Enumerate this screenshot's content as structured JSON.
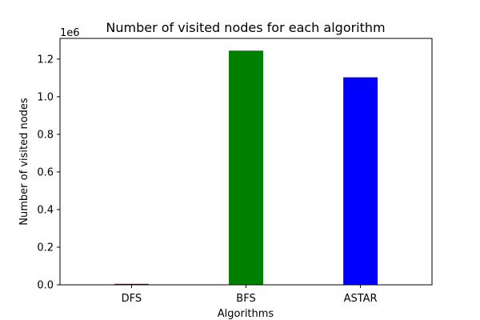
{
  "chart_data": {
    "type": "bar",
    "title": "Number of visited nodes for each algorithm",
    "xlabel": "Algorithms",
    "ylabel": "Number of visited nodes",
    "y_offset_label": "1e6",
    "y_scale": 1000000,
    "categories": [
      "DFS",
      "BFS",
      "ASTAR"
    ],
    "values": [
      5000,
      1245000,
      1103000
    ],
    "bar_colors": [
      "#8b0000",
      "#008000",
      "#0000ff"
    ],
    "ylim": [
      0,
      1310000
    ],
    "yticks": [
      0,
      200000,
      400000,
      600000,
      800000,
      1000000,
      1200000
    ],
    "ytick_labels": [
      "0.0",
      "0.2",
      "0.4",
      "0.6",
      "0.8",
      "1.0",
      "1.2"
    ],
    "grid": false,
    "legend": "none"
  }
}
